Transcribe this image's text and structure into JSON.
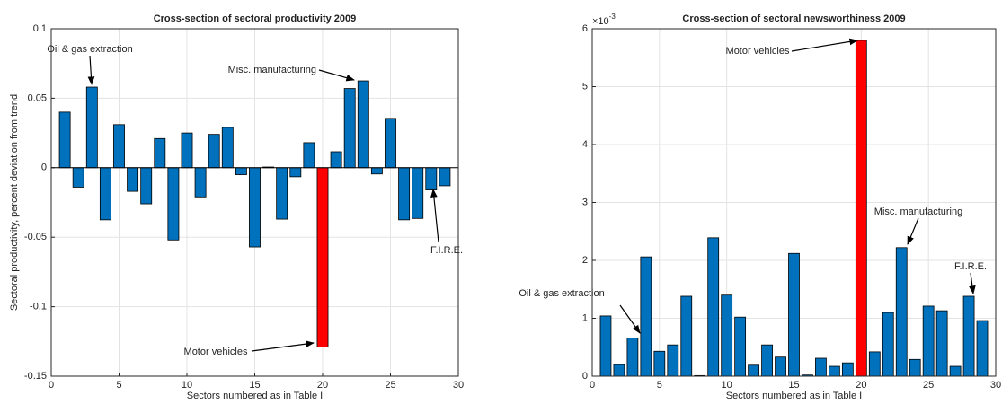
{
  "chart_data": [
    {
      "type": "bar",
      "title": "Cross-section of sectoral productivity 2009",
      "x_label": "Sectors numbered as in Table I",
      "y_label": "Sectoral productivity, percent deviation from trend",
      "categories": [
        1,
        2,
        3,
        4,
        5,
        6,
        7,
        8,
        9,
        10,
        11,
        12,
        13,
        14,
        15,
        16,
        17,
        18,
        19,
        20,
        21,
        22,
        23,
        24,
        25,
        26,
        27,
        28,
        29
      ],
      "values": [
        0.04,
        -0.014,
        0.058,
        -0.0375,
        0.031,
        -0.017,
        -0.026,
        0.021,
        -0.052,
        0.025,
        -0.021,
        0.024,
        0.029,
        -0.005,
        -0.057,
        0.0005,
        -0.037,
        -0.0065,
        0.018,
        -0.129,
        0.0115,
        0.057,
        0.0625,
        -0.0045,
        0.0355,
        -0.0375,
        -0.0365,
        -0.016,
        -0.013
      ],
      "colors": [
        "#0072bd",
        "#0072bd",
        "#0072bd",
        "#0072bd",
        "#0072bd",
        "#0072bd",
        "#0072bd",
        "#0072bd",
        "#0072bd",
        "#0072bd",
        "#0072bd",
        "#0072bd",
        "#0072bd",
        "#0072bd",
        "#0072bd",
        "#0072bd",
        "#0072bd",
        "#0072bd",
        "#0072bd",
        "#ff0000",
        "#0072bd",
        "#0072bd",
        "#0072bd",
        "#0072bd",
        "#0072bd",
        "#0072bd",
        "#0072bd",
        "#0072bd",
        "#0072bd"
      ],
      "xlim": [
        0,
        30
      ],
      "xticks": [
        0,
        5,
        10,
        15,
        20,
        25,
        30
      ],
      "ylim": [
        -0.15,
        0.1
      ],
      "yticks": [
        -0.15,
        -0.1,
        -0.05,
        0,
        0.05,
        0.1
      ],
      "grid": true,
      "annotations": [
        "Oil & gas extraction",
        "Misc. manufacturing",
        "Motor vehicles",
        "F.I.R.E."
      ]
    },
    {
      "type": "bar",
      "title": "Cross-section of sectoral newsworthiness 2009",
      "x_label": "Sectors numbered as in Table I",
      "axis_multiplier": {
        "base": "×10",
        "exponent": "-3"
      },
      "categories": [
        1,
        2,
        3,
        4,
        5,
        6,
        7,
        8,
        9,
        10,
        11,
        12,
        13,
        14,
        15,
        16,
        17,
        18,
        19,
        20,
        21,
        22,
        23,
        24,
        25,
        26,
        27,
        28,
        29
      ],
      "values": [
        1.04,
        0.2,
        0.66,
        2.06,
        0.43,
        0.54,
        1.38,
        0.01,
        2.39,
        1.4,
        1.02,
        0.19,
        0.54,
        0.33,
        2.12,
        0.02,
        0.31,
        0.17,
        0.23,
        5.8,
        0.42,
        1.1,
        2.22,
        0.29,
        1.21,
        1.13,
        0.17,
        1.38,
        0.96
      ],
      "colors": [
        "#0072bd",
        "#0072bd",
        "#0072bd",
        "#0072bd",
        "#0072bd",
        "#0072bd",
        "#0072bd",
        "#0072bd",
        "#0072bd",
        "#0072bd",
        "#0072bd",
        "#0072bd",
        "#0072bd",
        "#0072bd",
        "#0072bd",
        "#0072bd",
        "#0072bd",
        "#0072bd",
        "#0072bd",
        "#ff0000",
        "#0072bd",
        "#0072bd",
        "#0072bd",
        "#0072bd",
        "#0072bd",
        "#0072bd",
        "#0072bd",
        "#0072bd",
        "#0072bd"
      ],
      "xlim": [
        0,
        30
      ],
      "xticks": [
        0,
        5,
        10,
        15,
        20,
        25,
        30
      ],
      "ylim": [
        0,
        6
      ],
      "yticks": [
        0,
        1,
        2,
        3,
        4,
        5,
        6
      ],
      "grid": true,
      "annotations": [
        "Motor vehicles",
        "Misc. manufacturing",
        "F.I.R.E.",
        "Oil & gas extraction"
      ]
    }
  ]
}
